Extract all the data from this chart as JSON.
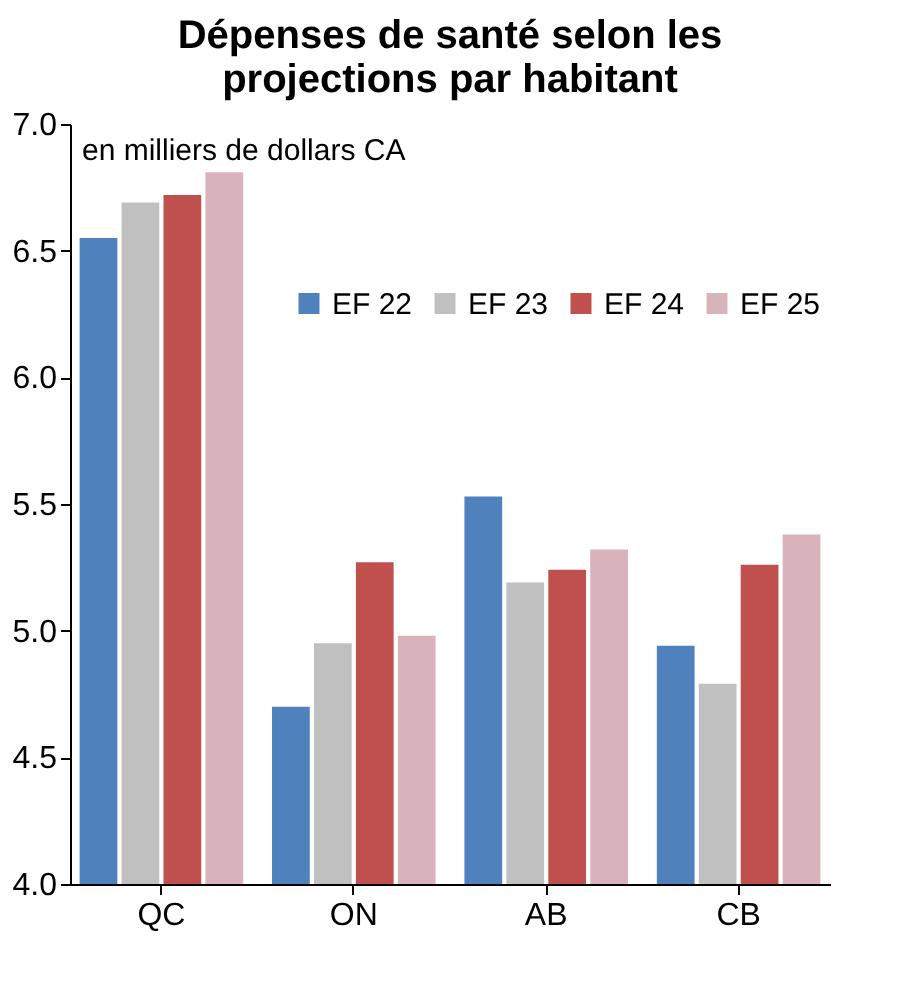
{
  "chart_data": {
    "type": "bar",
    "title": "Dépenses de santé selon les projections par habitant",
    "annotations": [
      "en milliers de dollars CA"
    ],
    "categories": [
      "QC",
      "ON",
      "AB",
      "CB"
    ],
    "series": [
      {
        "name": "EF 22",
        "color": "#4f81bd",
        "values": [
          6.55,
          4.7,
          5.53,
          4.94
        ]
      },
      {
        "name": "EF 23",
        "color": "#c0c0c0",
        "values": [
          6.69,
          4.95,
          5.19,
          4.79
        ]
      },
      {
        "name": "EF 24",
        "color": "#c0504d",
        "values": [
          6.72,
          5.27,
          5.24,
          5.26
        ]
      },
      {
        "name": "EF 25",
        "color": "#d9b3bc",
        "values": [
          6.81,
          4.98,
          5.32,
          5.38
        ]
      }
    ],
    "ylim": [
      4.0,
      7.0
    ],
    "yticks": [
      {
        "value": 4.0,
        "label": "4.0"
      },
      {
        "value": 4.5,
        "label": "4.5"
      },
      {
        "value": 5.0,
        "label": "5.0"
      },
      {
        "value": 5.5,
        "label": "5.5"
      },
      {
        "value": 6.0,
        "label": "6.0"
      },
      {
        "value": 6.5,
        "label": "6.5"
      },
      {
        "value": 7.0,
        "label": "7.0"
      }
    ],
    "grid": false,
    "legend": "top right"
  }
}
